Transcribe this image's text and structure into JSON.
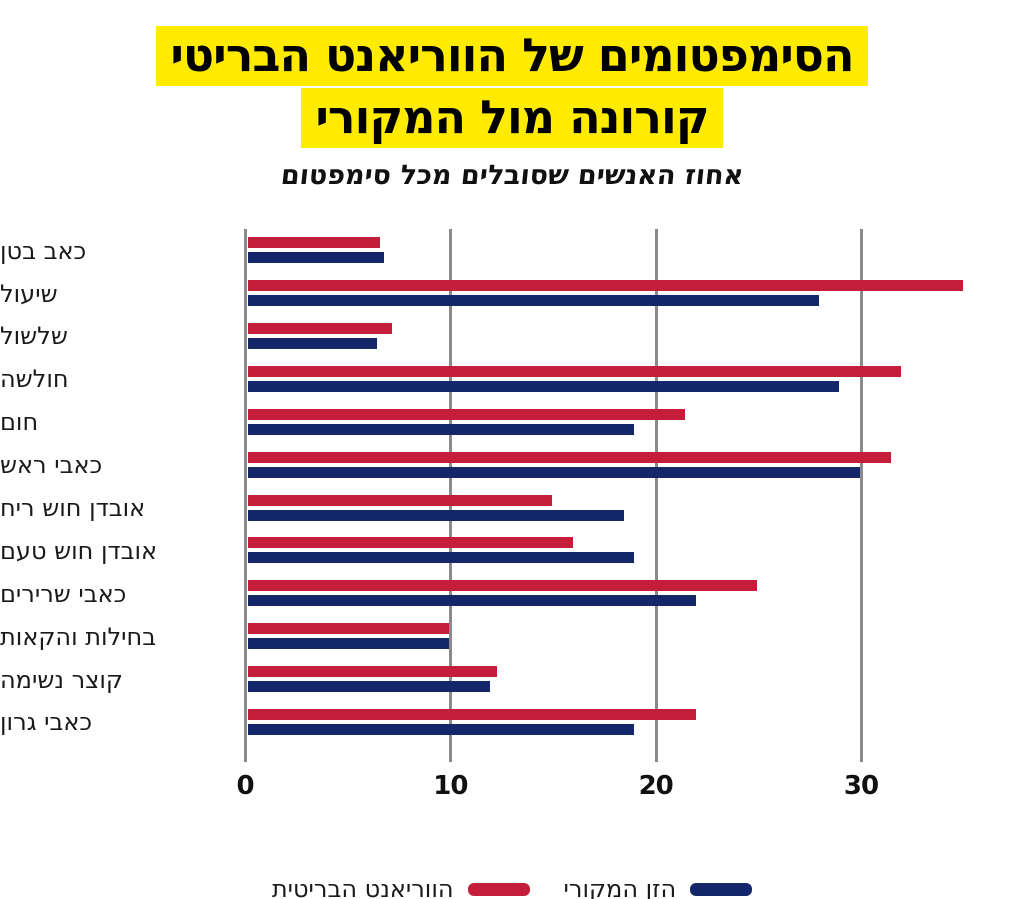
{
  "title": {
    "line1": "הסימפטומים של הווריאנט הבריטי",
    "line2": "קורונה מול המקורי"
  },
  "subtitle": "אחוז האנשים שסובלים מכל סימפטום",
  "colors": {
    "variant_red": "#C51E3A",
    "original_navy": "#15276B",
    "highlight_yellow": "#FFEB00",
    "gridline_gray": "#8A8A8A",
    "text_black": "#111111"
  },
  "legend": [
    {
      "label": "הזן המקורי",
      "color_key": "original_navy"
    },
    {
      "label": "הווריאנט הבריטית",
      "color_key": "variant_red"
    }
  ],
  "chart_data": {
    "type": "bar",
    "orientation": "horizontal",
    "title": "הסימפטומים של הווריאנט הבריטי קורונה מול המקורי",
    "subtitle": "אחוז האנשים שסובלים מכל סימפטום",
    "categories": [
      "כאב בטן",
      "שיעול",
      "שלשול",
      "חולשה",
      "חום",
      "כאבי ראש",
      "אובדן חוש ריח",
      "אובדן חוש טעם",
      "כאבי שרירים",
      "בחילות והקאות",
      "קוצר נשימה",
      "כאבי גרון"
    ],
    "series": [
      {
        "name": "הווריאנט הבריטית",
        "color_key": "variant_red",
        "values": [
          6.6,
          35,
          7.2,
          32,
          21.5,
          31.5,
          15,
          16,
          25,
          10,
          12.3,
          22
        ]
      },
      {
        "name": "הזן המקורי",
        "color_key": "original_navy",
        "values": [
          6.8,
          28,
          6.5,
          29,
          19,
          30,
          18.5,
          19,
          22,
          10,
          12,
          19
        ]
      }
    ],
    "x_ticks": [
      0,
      10,
      20,
      30
    ],
    "x_tick_labels": [
      "0",
      "10",
      "20",
      "30"
    ],
    "xlim": [
      0,
      37.5
    ],
    "grid": true,
    "legend_position": "bottom"
  }
}
